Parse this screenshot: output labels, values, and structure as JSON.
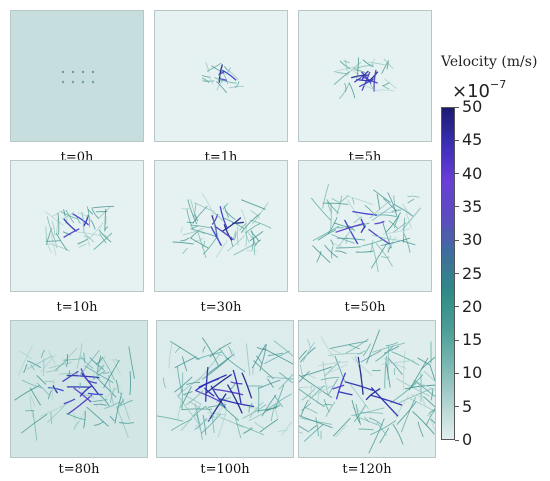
{
  "figure": {
    "panels": [
      {
        "label": "t=0h",
        "background": "#c6dede",
        "intensity": 0,
        "seed": 1
      },
      {
        "label": "t=1h",
        "background": "#e6f1f1",
        "intensity": 1,
        "seed": 2
      },
      {
        "label": "t=5h",
        "background": "#e6f1f1",
        "intensity": 2,
        "seed": 3
      },
      {
        "label": "t=10h",
        "background": "#e6f1f1",
        "intensity": 3,
        "seed": 4
      },
      {
        "label": "t=30h",
        "background": "#e6f1f1",
        "intensity": 4,
        "seed": 5
      },
      {
        "label": "t=50h",
        "background": "#e6f1f1",
        "intensity": 5,
        "seed": 6
      },
      {
        "label": "t=80h",
        "background": "#d3e6e6",
        "intensity": 6,
        "seed": 7
      },
      {
        "label": "t=100h",
        "background": "#dcebeb",
        "intensity": 7,
        "seed": 8
      },
      {
        "label": "t=120h",
        "background": "#e0eded",
        "intensity": 8,
        "seed": 9
      }
    ]
  },
  "colorbar": {
    "title": "Velocity (m/s)",
    "multiplier": "×10",
    "exponent": "−7",
    "ticks": [
      "50",
      "45",
      "40",
      "35",
      "30",
      "25",
      "20",
      "15",
      "10",
      "5",
      "0"
    ],
    "range": [
      0,
      50
    ],
    "colors": [
      "#1b1b6e",
      "#3a2fb8",
      "#6a3fd8",
      "#5a4cc0",
      "#3f6f9a",
      "#2f8a86",
      "#4a9e96",
      "#7ab8b2",
      "#b0d3d0",
      "#e2efee"
    ]
  }
}
